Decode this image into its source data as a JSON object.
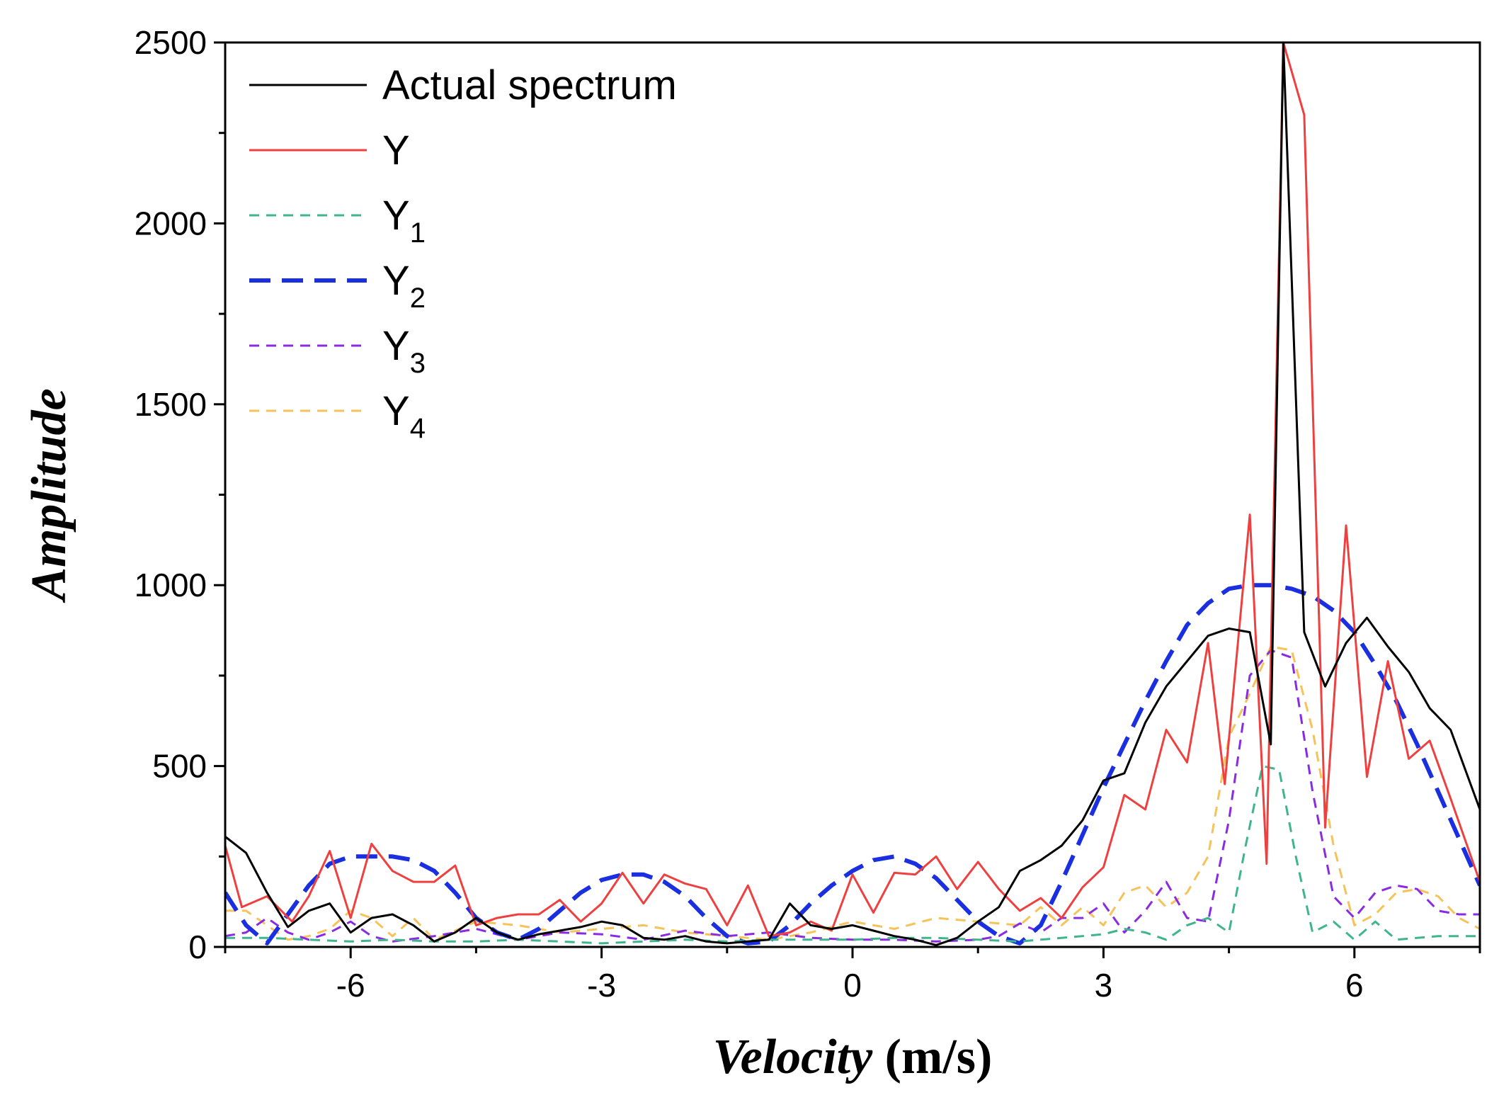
{
  "chart_data": {
    "type": "line",
    "title": "",
    "xlabel": {
      "italic": "Velocity",
      "plain": " (m/s)"
    },
    "ylabel": "Amplitude",
    "xlim": [
      -7.5,
      7.5
    ],
    "ylim": [
      0,
      2500
    ],
    "x_ticks": [
      -6,
      -3,
      0,
      3,
      6
    ],
    "x_tick_labels": [
      "-6",
      "-3",
      "0",
      "3",
      "6"
    ],
    "y_ticks": [
      0,
      500,
      1000,
      1500,
      2000,
      2500
    ],
    "y_tick_labels": [
      "0",
      "500",
      "1000",
      "1500",
      "2000",
      "2500"
    ],
    "legend_position": "top-left",
    "series": [
      {
        "name": "Actual spectrum",
        "label_main": "Actual spectrum",
        "label_sub": "",
        "color": "#000000",
        "style": "solid",
        "x": [
          -7.5,
          -7.25,
          -7.0,
          -6.75,
          -6.5,
          -6.25,
          -6.0,
          -5.75,
          -5.5,
          -5.25,
          -5.0,
          -4.75,
          -4.5,
          -4.25,
          -4.0,
          -3.75,
          -3.5,
          -3.25,
          -3.0,
          -2.75,
          -2.5,
          -2.25,
          -2.0,
          -1.75,
          -1.5,
          -1.25,
          -1.0,
          -0.75,
          -0.5,
          -0.25,
          0.0,
          0.25,
          0.5,
          0.75,
          1.0,
          1.25,
          1.5,
          1.75,
          2.0,
          2.25,
          2.5,
          2.75,
          3.0,
          3.25,
          3.5,
          3.75,
          4.0,
          4.25,
          4.5,
          4.75,
          5.0,
          5.15,
          5.4,
          5.65,
          5.9,
          6.15,
          6.4,
          6.65,
          6.9,
          7.15,
          7.5
        ],
        "y": [
          305,
          260,
          150,
          55,
          100,
          120,
          40,
          80,
          90,
          60,
          15,
          40,
          80,
          40,
          20,
          35,
          45,
          55,
          70,
          60,
          25,
          20,
          30,
          15,
          10,
          15,
          20,
          120,
          60,
          50,
          60,
          45,
          30,
          20,
          5,
          25,
          70,
          110,
          210,
          240,
          280,
          350,
          460,
          480,
          620,
          720,
          790,
          860,
          880,
          870,
          560,
          2500,
          870,
          720,
          840,
          910,
          830,
          760,
          660,
          600,
          380
        ]
      },
      {
        "name": "Y",
        "label_main": "Y",
        "label_sub": "",
        "color": "#ef4040",
        "style": "solid",
        "x": [
          -7.5,
          -7.3,
          -7.0,
          -6.7,
          -6.5,
          -6.25,
          -6.0,
          -5.75,
          -5.5,
          -5.25,
          -5.0,
          -4.75,
          -4.5,
          -4.25,
          -4.0,
          -3.75,
          -3.5,
          -3.25,
          -3.0,
          -2.75,
          -2.5,
          -2.25,
          -2.0,
          -1.75,
          -1.5,
          -1.25,
          -1.0,
          -0.75,
          -0.5,
          -0.25,
          0.0,
          0.25,
          0.5,
          0.75,
          1.0,
          1.25,
          1.5,
          1.75,
          2.0,
          2.25,
          2.5,
          2.75,
          3.0,
          3.25,
          3.5,
          3.75,
          4.0,
          4.25,
          4.45,
          4.75,
          4.95,
          5.15,
          5.4,
          5.65,
          5.9,
          6.15,
          6.4,
          6.65,
          6.9,
          7.15,
          7.5
        ],
        "y": [
          280,
          110,
          140,
          70,
          140,
          265,
          80,
          285,
          210,
          180,
          180,
          225,
          60,
          80,
          90,
          90,
          130,
          70,
          120,
          205,
          120,
          200,
          175,
          160,
          60,
          170,
          30,
          40,
          70,
          45,
          200,
          95,
          205,
          200,
          250,
          160,
          235,
          160,
          100,
          135,
          80,
          165,
          220,
          420,
          380,
          600,
          510,
          840,
          450,
          1195,
          230,
          2500,
          2300,
          330,
          1165,
          470,
          790,
          520,
          570,
          410,
          180
        ]
      },
      {
        "name": "Y1",
        "label_main": "Y",
        "label_sub": "1",
        "color": "#3fb58e",
        "style": "dashed",
        "x": [
          -7.5,
          -7.0,
          -6.5,
          -6.0,
          -5.5,
          -5.0,
          -4.5,
          -4.0,
          -3.5,
          -3.0,
          -2.5,
          -2.0,
          -1.5,
          -1.0,
          -0.5,
          0.0,
          0.5,
          1.0,
          1.5,
          2.0,
          2.5,
          3.0,
          3.25,
          3.5,
          3.75,
          4.0,
          4.25,
          4.5,
          4.7,
          4.9,
          5.1,
          5.3,
          5.5,
          5.75,
          6.0,
          6.25,
          6.5,
          7.0,
          7.5
        ],
        "y": [
          25,
          25,
          20,
          15,
          20,
          15,
          15,
          20,
          15,
          10,
          15,
          20,
          15,
          20,
          20,
          20,
          25,
          25,
          20,
          15,
          25,
          35,
          50,
          40,
          20,
          60,
          80,
          40,
          280,
          500,
          490,
          250,
          40,
          70,
          20,
          70,
          20,
          30,
          30
        ]
      },
      {
        "name": "Y2",
        "label_main": "Y",
        "label_sub": "2",
        "color": "#1a2fe0",
        "style": "dashed-thick",
        "x": [
          -7.5,
          -7.25,
          -7.0,
          -6.75,
          -6.5,
          -6.25,
          -6.0,
          -5.75,
          -5.5,
          -5.25,
          -5.0,
          -4.75,
          -4.5,
          -4.25,
          -4.0,
          -3.75,
          -3.5,
          -3.25,
          -3.0,
          -2.75,
          -2.5,
          -2.25,
          -2.0,
          -1.75,
          -1.5,
          -1.25,
          -1.0,
          -0.75,
          -0.5,
          -0.25,
          0.0,
          0.25,
          0.5,
          0.75,
          1.0,
          1.25,
          1.5,
          1.75,
          2.0,
          2.25,
          2.5,
          2.75,
          3.0,
          3.25,
          3.5,
          3.75,
          4.0,
          4.25,
          4.5,
          4.75,
          5.0,
          5.25,
          5.5,
          5.75,
          6.0,
          6.25,
          6.5,
          6.75,
          7.0,
          7.25,
          7.5
        ],
        "y": [
          150,
          60,
          10,
          90,
          170,
          230,
          250,
          250,
          250,
          240,
          210,
          150,
          80,
          40,
          20,
          50,
          100,
          150,
          185,
          200,
          200,
          180,
          140,
          80,
          30,
          10,
          15,
          60,
          120,
          170,
          210,
          240,
          250,
          230,
          190,
          130,
          70,
          30,
          10,
          60,
          180,
          310,
          440,
          560,
          680,
          790,
          890,
          950,
          990,
          1000,
          1000,
          990,
          970,
          930,
          870,
          780,
          680,
          560,
          430,
          300,
          170
        ]
      },
      {
        "name": "Y3",
        "label_main": "Y",
        "label_sub": "3",
        "color": "#8a2be2",
        "style": "dashed",
        "x": [
          -7.5,
          -7.25,
          -7.0,
          -6.75,
          -6.5,
          -6.25,
          -6.0,
          -5.75,
          -5.5,
          -5.0,
          -4.5,
          -4.0,
          -3.5,
          -3.0,
          -2.5,
          -2.0,
          -1.5,
          -1.0,
          -0.5,
          0.0,
          0.5,
          1.0,
          1.5,
          1.75,
          2.0,
          2.25,
          2.5,
          2.75,
          3.0,
          3.25,
          3.5,
          3.75,
          4.0,
          4.25,
          4.5,
          4.75,
          5.0,
          5.25,
          5.5,
          5.75,
          6.0,
          6.25,
          6.5,
          6.75,
          7.0,
          7.25,
          7.5
        ],
        "y": [
          30,
          40,
          80,
          40,
          20,
          40,
          70,
          30,
          15,
          30,
          50,
          20,
          40,
          35,
          20,
          45,
          30,
          40,
          25,
          20,
          20,
          15,
          20,
          30,
          65,
          40,
          80,
          80,
          120,
          40,
          100,
          180,
          80,
          70,
          350,
          750,
          820,
          800,
          430,
          140,
          80,
          150,
          170,
          160,
          100,
          90,
          90
        ]
      },
      {
        "name": "Y4",
        "label_main": "Y",
        "label_sub": "4",
        "color": "#f5c35a",
        "style": "dashed",
        "x": [
          -7.5,
          -7.25,
          -7.0,
          -6.75,
          -6.5,
          -6.25,
          -6.0,
          -5.75,
          -5.5,
          -5.25,
          -5.0,
          -4.5,
          -4.0,
          -3.5,
          -3.0,
          -2.5,
          -2.0,
          -1.5,
          -1.0,
          -0.5,
          0.0,
          0.5,
          1.0,
          1.5,
          2.0,
          2.25,
          2.5,
          2.75,
          3.0,
          3.25,
          3.5,
          3.75,
          4.0,
          4.25,
          4.5,
          4.75,
          5.0,
          5.25,
          5.5,
          5.75,
          6.0,
          6.25,
          6.5,
          6.75,
          7.0,
          7.25,
          7.5
        ],
        "y": [
          100,
          100,
          60,
          20,
          30,
          50,
          100,
          80,
          30,
          80,
          20,
          70,
          60,
          40,
          50,
          60,
          40,
          30,
          20,
          40,
          70,
          50,
          80,
          70,
          60,
          110,
          60,
          110,
          60,
          150,
          170,
          110,
          150,
          250,
          580,
          700,
          830,
          820,
          600,
          280,
          60,
          90,
          150,
          160,
          140,
          80,
          50
        ]
      }
    ]
  }
}
